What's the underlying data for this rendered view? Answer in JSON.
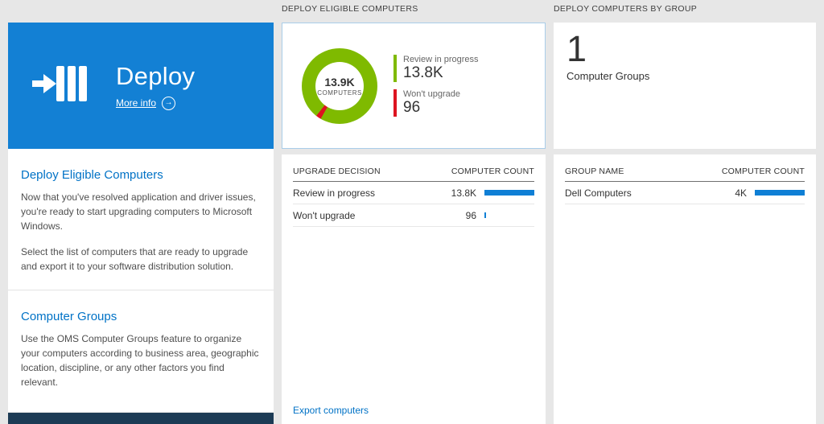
{
  "colors": {
    "tile_blue": "#1380d4",
    "accent_blue": "#0072c6",
    "bar_blue": "#0f7fd5",
    "footer_dark": "#1c3b55"
  },
  "left": {
    "tile": {
      "title": "Deploy",
      "more_info_label": "More info"
    },
    "sections": [
      {
        "heading": "Deploy Eligible Computers",
        "paragraphs": [
          "Now that you've resolved application and driver issues, you're ready to start upgrading computers to Microsoft Windows.",
          "Select the list of computers that are ready to upgrade and export it to your software distribution solution."
        ]
      },
      {
        "heading": "Computer Groups",
        "paragraphs": [
          "Use the OMS Computer Groups feature to organize your computers according to business area, geographic location, discipline, or any other factors you find relevant."
        ]
      }
    ]
  },
  "middle": {
    "header": "DEPLOY ELIGIBLE COMPUTERS",
    "donut": {
      "center_value": "13.9K",
      "center_label": "COMPUTERS",
      "legend": [
        {
          "label": "Review in progress",
          "value": "13.8K",
          "value_num": 13800,
          "color": "#7fba00"
        },
        {
          "label": "Won't upgrade",
          "value": "96",
          "value_num": 96,
          "color": "#dd1420"
        }
      ]
    },
    "table": {
      "col_left": "UPGRADE DECISION",
      "col_right": "COMPUTER COUNT",
      "rows": [
        {
          "label": "Review in progress",
          "value": "13.8K",
          "bar_pct": 100
        },
        {
          "label": "Won't upgrade",
          "value": "96",
          "bar_pct": 2
        }
      ]
    },
    "export_link": "Export computers"
  },
  "right": {
    "header": "DEPLOY COMPUTERS BY GROUP",
    "summary": {
      "value": "1",
      "label": "Computer Groups"
    },
    "table": {
      "col_left": "GROUP NAME",
      "col_right": "COMPUTER COUNT",
      "rows": [
        {
          "label": "Dell Computers",
          "value": "4K",
          "bar_pct": 100
        }
      ]
    }
  }
}
